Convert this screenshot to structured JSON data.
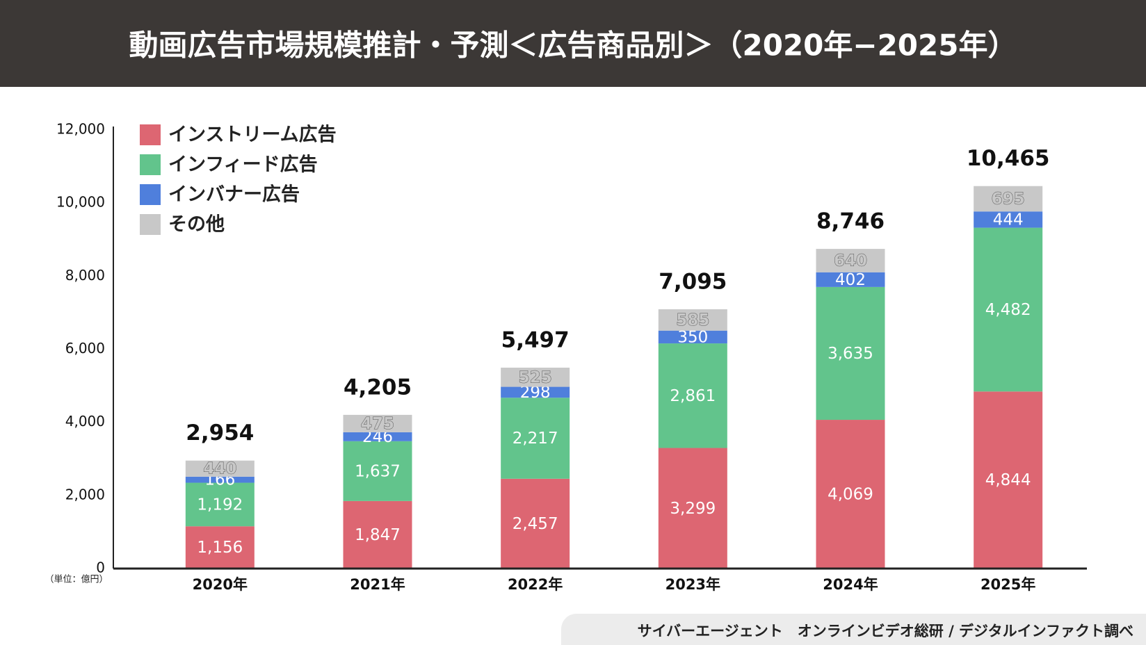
{
  "chart_data": {
    "type": "stacked-bar",
    "title": "動画広告市場規模推計・予測＜広告商品別＞（2020年−2025年）",
    "unit_label": "（単位：億円）",
    "source": "サイバーエージェント　オンラインビデオ総研 / デジタルインファクト調べ",
    "categories": [
      "2020年",
      "2021年",
      "2022年",
      "2023年",
      "2024年",
      "2025年"
    ],
    "series": [
      {
        "name": "インストリーム広告",
        "color": "#dd6672",
        "values": [
          1156,
          1847,
          2457,
          3299,
          4069,
          4844
        ],
        "value_labels": [
          "1,156",
          "1,847",
          "2,457",
          "3,299",
          "4,069",
          "4,844"
        ]
      },
      {
        "name": "インフィード広告",
        "color": "#62c48c",
        "values": [
          1192,
          1637,
          2217,
          2861,
          3635,
          4482
        ],
        "value_labels": [
          "1,192",
          "1,637",
          "2,217",
          "2,861",
          "3,635",
          "4,482"
        ]
      },
      {
        "name": "インバナー広告",
        "color": "#4f7fdc",
        "values": [
          166,
          246,
          298,
          350,
          402,
          444
        ]
      },
      {
        "name": "その他",
        "color": "#c8c8c8",
        "values": [
          440,
          475,
          525,
          585,
          640,
          695
        ]
      }
    ],
    "totals": {
      "values": [
        2954,
        4205,
        5497,
        7095,
        8746,
        10465
      ],
      "value_labels": [
        "2,954",
        "4,205",
        "5,497",
        "7,095",
        "8,746",
        "10,465"
      ]
    },
    "ylim": [
      0,
      12000
    ],
    "yticks": [
      0,
      {
        "value": 2000,
        "label": "2,000"
      },
      {
        "value": 4000,
        "label": "4,000"
      },
      {
        "value": 6000,
        "label": "6,000"
      },
      {
        "value": 8000,
        "label": "8,000"
      },
      {
        "value": 10000,
        "label": "10,000"
      },
      {
        "value": 12000,
        "label": "12,000"
      }
    ],
    "grid": false,
    "legend": "top-left"
  }
}
